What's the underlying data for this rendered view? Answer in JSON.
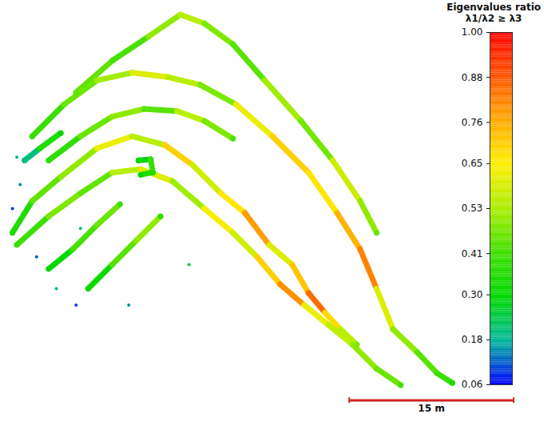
{
  "chart_data": {
    "type": "point_cloud",
    "xlim": [
      0,
      49.6
    ],
    "ylim": [
      0,
      38.5
    ],
    "tick_labels": false,
    "strands": [
      {
        "x": [
          6.9,
          10.2,
          13.5,
          16.4,
          18.6,
          21.2,
          24.1,
          27.4,
          30.3,
          32.8,
          34.3
        ],
        "y": [
          30.1,
          33.0,
          35.2,
          37.2,
          36.4,
          34.5,
          31.2,
          27.5,
          23.9,
          20.2,
          17.3
        ],
        "values": [
          0.45,
          0.42,
          0.5,
          0.55,
          0.48,
          0.44,
          0.52,
          0.47,
          0.58,
          0.5,
          0.45
        ]
      },
      {
        "x": [
          2.9,
          5.8,
          8.8,
          12.0,
          15.3,
          18.2,
          21.5,
          24.8,
          28.1,
          30.7,
          32.8,
          34.3,
          35.8,
          38.0,
          39.8,
          41.2
        ],
        "y": [
          26.1,
          29.0,
          31.2,
          31.9,
          31.5,
          30.8,
          29.0,
          26.1,
          22.8,
          19.1,
          15.8,
          12.2,
          8.5,
          6.4,
          4.5,
          3.6
        ],
        "values": [
          0.4,
          0.46,
          0.52,
          0.6,
          0.55,
          0.48,
          0.62,
          0.7,
          0.66,
          0.75,
          0.82,
          0.6,
          0.5,
          0.44,
          0.4,
          0.35
        ]
      },
      {
        "x": [
          1.1,
          2.9,
          5.5,
          8.8,
          12.0,
          15.0,
          17.5,
          20.1,
          22.3,
          24.5,
          26.6,
          28.1,
          29.6,
          31.0,
          32.5
        ],
        "y": [
          17.3,
          20.2,
          22.4,
          25.0,
          26.1,
          25.3,
          23.5,
          20.9,
          19.1,
          16.2,
          14.4,
          11.8,
          10.0,
          8.5,
          7.1
        ],
        "values": [
          0.35,
          0.45,
          0.5,
          0.62,
          0.55,
          0.7,
          0.58,
          0.66,
          0.78,
          0.6,
          0.72,
          0.85,
          0.68,
          0.55,
          0.48
        ]
      },
      {
        "x": [
          1.5,
          4.4,
          7.3,
          10.2,
          12.8,
          15.7,
          18.6,
          21.2,
          23.4,
          25.5,
          27.7,
          29.9,
          32.1,
          34.3,
          36.5
        ],
        "y": [
          16.2,
          18.8,
          20.9,
          22.8,
          23.1,
          22.0,
          19.5,
          17.3,
          15.1,
          12.6,
          10.7,
          8.9,
          7.1,
          4.9,
          3.4
        ],
        "values": [
          0.4,
          0.48,
          0.45,
          0.55,
          0.6,
          0.52,
          0.64,
          0.58,
          0.7,
          0.8,
          0.62,
          0.56,
          0.5,
          0.46,
          0.42
        ]
      },
      {
        "x": [
          4.4,
          6.6,
          8.8,
          10.9
        ],
        "y": [
          14.0,
          15.8,
          18.0,
          19.9
        ],
        "values": [
          0.3,
          0.42,
          0.46,
          0.4
        ]
      },
      {
        "x": [
          8.0,
          10.2,
          12.4,
          14.6
        ],
        "y": [
          12.2,
          14.4,
          16.6,
          18.8
        ],
        "values": [
          0.32,
          0.44,
          0.5,
          0.38
        ]
      },
      {
        "x": [
          4.4,
          7.3,
          10.2,
          13.1,
          16.1,
          18.6,
          21.2
        ],
        "y": [
          23.9,
          26.1,
          27.9,
          28.6,
          28.4,
          27.5,
          25.9
        ],
        "values": [
          0.38,
          0.46,
          0.5,
          0.44,
          0.55,
          0.48,
          0.42
        ]
      },
      {
        "x": [
          12.6,
          13.7,
          13.9,
          12.8
        ],
        "y": [
          23.9,
          24.0,
          22.8,
          22.6
        ],
        "values": [
          0.3,
          0.4,
          0.35,
          0.3
        ]
      },
      {
        "x": [
          2.2,
          3.6,
          5.5
        ],
        "y": [
          23.9,
          25.0,
          26.4
        ],
        "values": [
          0.2,
          0.35,
          0.3
        ]
      }
    ],
    "points": {
      "x": [
        1.1,
        1.8,
        3.3,
        5.1,
        6.9,
        1.5,
        11.7,
        17.2,
        7.3
      ],
      "y": [
        19.5,
        21.7,
        15.1,
        12.2,
        10.7,
        24.2,
        10.7,
        14.4,
        17.7
      ],
      "values": [
        0.1,
        0.15,
        0.12,
        0.2,
        0.1,
        0.18,
        0.15,
        0.25,
        0.2
      ]
    },
    "colorbar": {
      "title": "Eigenvalues ratio",
      "subtitle": "λ1/λ2 ≥ λ3",
      "range": [
        0.06,
        1
      ],
      "ticks": [
        0.06,
        0.18,
        {
          "value": 0.3,
          "label": "0.30"
        },
        0.41,
        0.53,
        0.65,
        0.76,
        0.88,
        {
          "value": 1,
          "label": "1.00"
        }
      ]
    },
    "scale_bar": {
      "length": 15,
      "label": "15 m"
    }
  }
}
